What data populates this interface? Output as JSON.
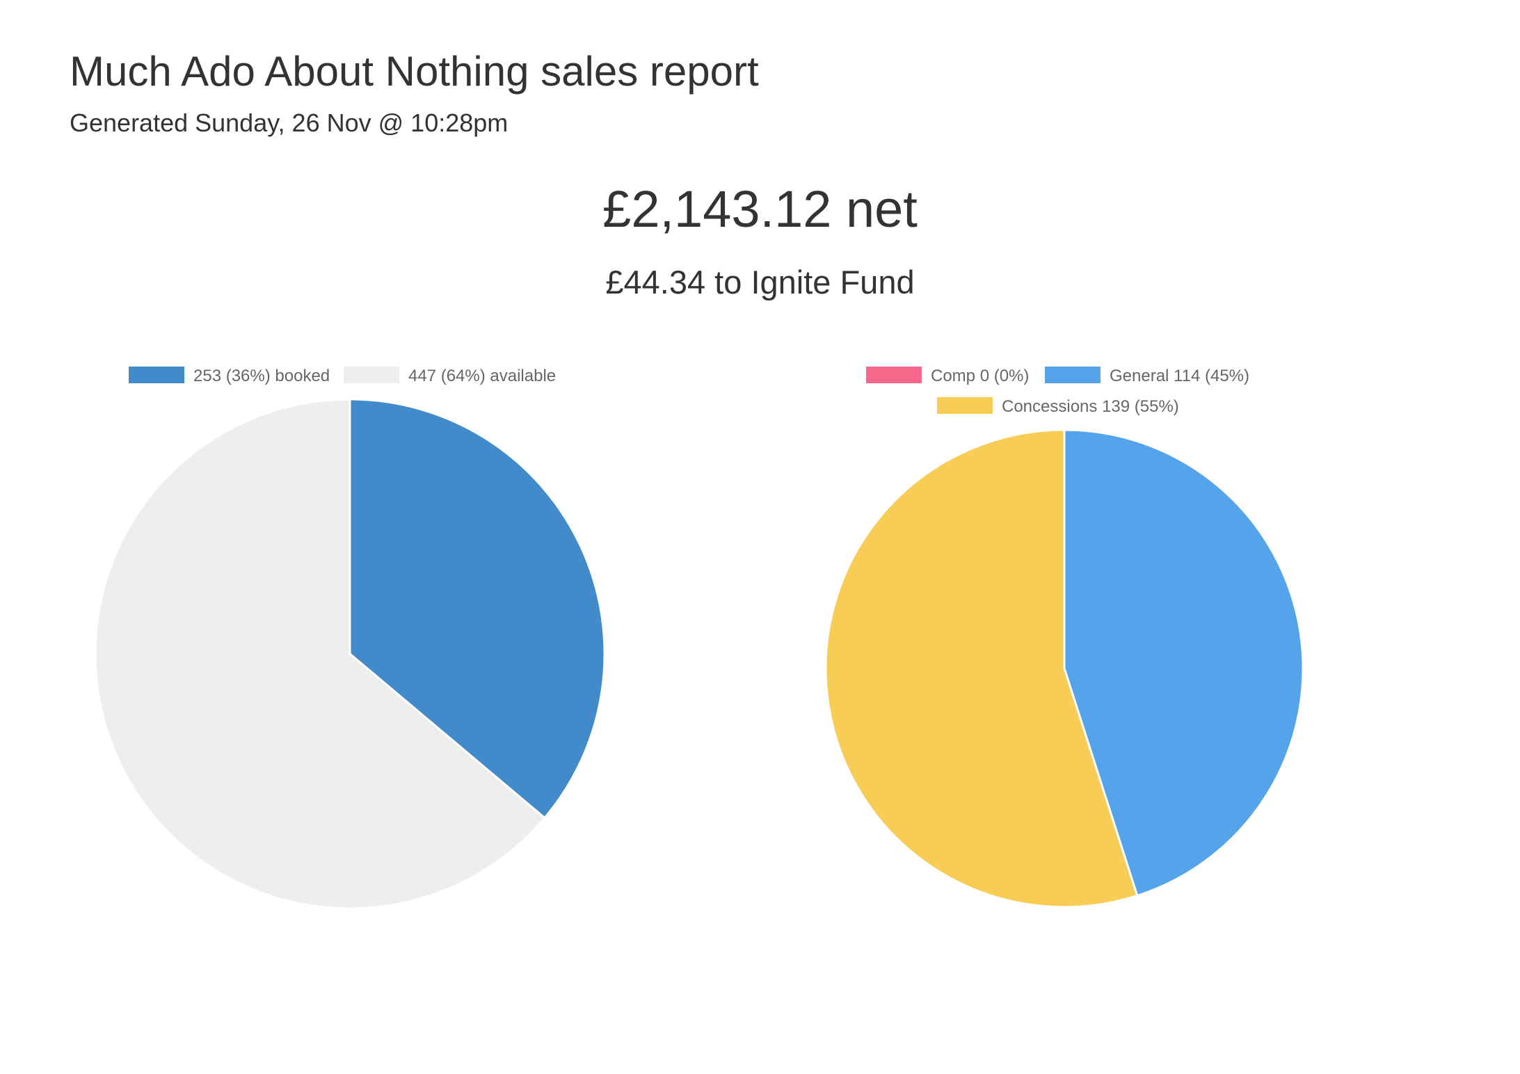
{
  "report": {
    "title": "Much Ado About Nothing sales report",
    "generated": "Generated Sunday, 26 Nov @ 10:28pm",
    "net_total": "£2,143.12 net",
    "fund_line": "£44.34 to Ignite Fund"
  },
  "chart_data": [
    {
      "type": "pie",
      "title": "",
      "legend_position": "top",
      "border_color": "#ffffff",
      "series": [
        {
          "label": "253 (36%) booked",
          "value": 253,
          "color": "#428bca"
        },
        {
          "label": "447 (64%) available",
          "value": 447,
          "color": "#eeeeee"
        }
      ]
    },
    {
      "type": "pie",
      "title": "",
      "legend_position": "top",
      "border_color": "#ffffff",
      "series": [
        {
          "label": "Comp 0 (0%)",
          "value": 0,
          "color": "#f7698b"
        },
        {
          "label": "General 114 (45%)",
          "value": 114,
          "color": "#54a3eb"
        },
        {
          "label": "Concessions 139 (55%)",
          "value": 139,
          "color": "#f8cd56"
        }
      ]
    }
  ]
}
